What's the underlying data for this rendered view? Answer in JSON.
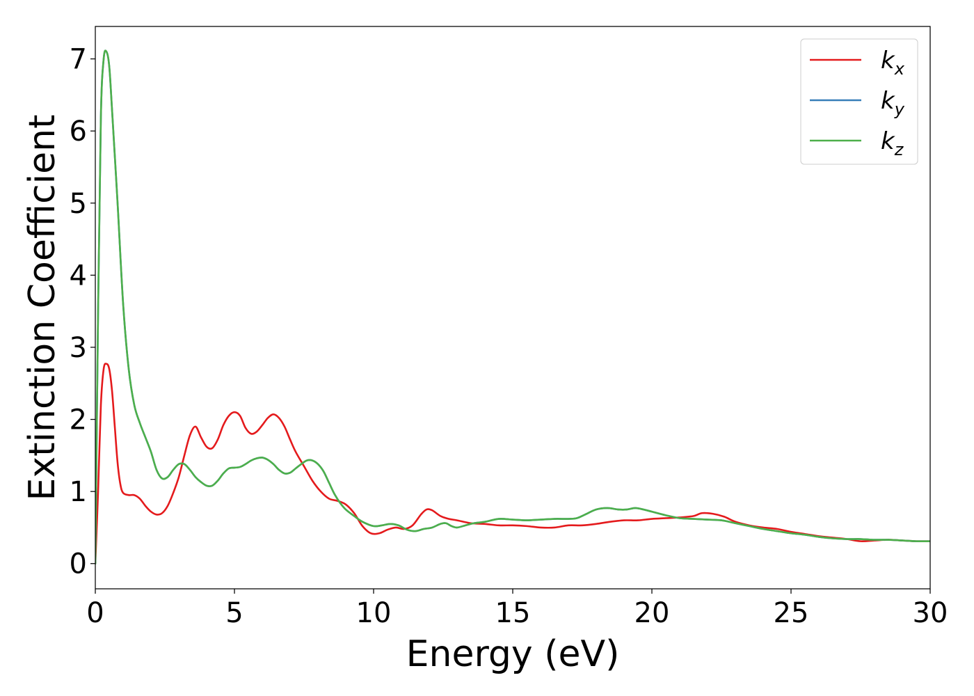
{
  "chart_data": {
    "type": "line",
    "xlabel": "Energy (eV)",
    "ylabel": "Extinction Coefficient",
    "xlim": [
      0,
      30
    ],
    "ylim": [
      -0.35,
      7.45
    ],
    "xticks": [
      0,
      5,
      10,
      15,
      20,
      25,
      30
    ],
    "yticks": [
      0,
      1,
      2,
      3,
      4,
      5,
      6,
      7
    ],
    "grid": false,
    "legend_position": "top-right",
    "series": [
      {
        "name": "k",
        "subscript": "x",
        "color": "#e41a1c",
        "points": [
          [
            0,
            0
          ],
          [
            0.1,
            1.0
          ],
          [
            0.2,
            2.2
          ],
          [
            0.3,
            2.7
          ],
          [
            0.4,
            2.77
          ],
          [
            0.5,
            2.7
          ],
          [
            0.6,
            2.4
          ],
          [
            0.7,
            1.9
          ],
          [
            0.8,
            1.4
          ],
          [
            0.9,
            1.1
          ],
          [
            1.0,
            0.98
          ],
          [
            1.2,
            0.95
          ],
          [
            1.4,
            0.95
          ],
          [
            1.6,
            0.9
          ],
          [
            1.8,
            0.8
          ],
          [
            2.0,
            0.72
          ],
          [
            2.2,
            0.68
          ],
          [
            2.4,
            0.7
          ],
          [
            2.6,
            0.8
          ],
          [
            2.8,
            0.98
          ],
          [
            3.0,
            1.2
          ],
          [
            3.2,
            1.5
          ],
          [
            3.4,
            1.78
          ],
          [
            3.6,
            1.9
          ],
          [
            3.8,
            1.75
          ],
          [
            4.0,
            1.62
          ],
          [
            4.2,
            1.6
          ],
          [
            4.4,
            1.72
          ],
          [
            4.6,
            1.92
          ],
          [
            4.8,
            2.05
          ],
          [
            5.0,
            2.1
          ],
          [
            5.2,
            2.05
          ],
          [
            5.4,
            1.88
          ],
          [
            5.6,
            1.8
          ],
          [
            5.8,
            1.83
          ],
          [
            6.0,
            1.92
          ],
          [
            6.2,
            2.02
          ],
          [
            6.4,
            2.07
          ],
          [
            6.6,
            2.02
          ],
          [
            6.8,
            1.9
          ],
          [
            7.0,
            1.72
          ],
          [
            7.2,
            1.55
          ],
          [
            7.5,
            1.35
          ],
          [
            7.8,
            1.15
          ],
          [
            8.1,
            1.0
          ],
          [
            8.4,
            0.9
          ],
          [
            8.7,
            0.87
          ],
          [
            9.0,
            0.82
          ],
          [
            9.3,
            0.7
          ],
          [
            9.6,
            0.52
          ],
          [
            9.9,
            0.42
          ],
          [
            10.2,
            0.42
          ],
          [
            10.5,
            0.47
          ],
          [
            10.8,
            0.5
          ],
          [
            11.1,
            0.48
          ],
          [
            11.4,
            0.53
          ],
          [
            11.7,
            0.68
          ],
          [
            11.9,
            0.75
          ],
          [
            12.1,
            0.74
          ],
          [
            12.4,
            0.66
          ],
          [
            12.7,
            0.62
          ],
          [
            13.0,
            0.6
          ],
          [
            13.5,
            0.56
          ],
          [
            14.0,
            0.55
          ],
          [
            14.5,
            0.53
          ],
          [
            15.0,
            0.53
          ],
          [
            15.5,
            0.52
          ],
          [
            16.0,
            0.5
          ],
          [
            16.5,
            0.5
          ],
          [
            17.0,
            0.53
          ],
          [
            17.5,
            0.53
          ],
          [
            18.0,
            0.55
          ],
          [
            18.5,
            0.58
          ],
          [
            19.0,
            0.6
          ],
          [
            19.5,
            0.6
          ],
          [
            20.0,
            0.62
          ],
          [
            20.5,
            0.63
          ],
          [
            21.0,
            0.64
          ],
          [
            21.5,
            0.66
          ],
          [
            21.8,
            0.7
          ],
          [
            22.2,
            0.69
          ],
          [
            22.6,
            0.65
          ],
          [
            23.0,
            0.58
          ],
          [
            23.5,
            0.53
          ],
          [
            24.0,
            0.5
          ],
          [
            24.5,
            0.48
          ],
          [
            25.0,
            0.44
          ],
          [
            25.5,
            0.41
          ],
          [
            26.0,
            0.38
          ],
          [
            26.5,
            0.36
          ],
          [
            27.0,
            0.34
          ],
          [
            27.5,
            0.31
          ],
          [
            28.0,
            0.32
          ],
          [
            28.5,
            0.33
          ],
          [
            29.0,
            0.32
          ],
          [
            29.5,
            0.31
          ],
          [
            30.0,
            0.31
          ]
        ]
      },
      {
        "name": "k",
        "subscript": "y",
        "color": "#377eb8",
        "points": [
          [
            0,
            0
          ],
          [
            0.1,
            3.5
          ],
          [
            0.2,
            6.2
          ],
          [
            0.3,
            7.0
          ],
          [
            0.4,
            7.1
          ],
          [
            0.5,
            6.9
          ],
          [
            0.6,
            6.3
          ],
          [
            0.8,
            5.0
          ],
          [
            1.0,
            3.6
          ],
          [
            1.2,
            2.7
          ],
          [
            1.4,
            2.2
          ],
          [
            1.6,
            1.95
          ],
          [
            1.8,
            1.75
          ],
          [
            2.0,
            1.55
          ],
          [
            2.2,
            1.3
          ],
          [
            2.4,
            1.18
          ],
          [
            2.6,
            1.2
          ],
          [
            2.8,
            1.3
          ],
          [
            3.0,
            1.38
          ],
          [
            3.2,
            1.38
          ],
          [
            3.4,
            1.3
          ],
          [
            3.6,
            1.2
          ],
          [
            3.8,
            1.13
          ],
          [
            4.0,
            1.08
          ],
          [
            4.2,
            1.08
          ],
          [
            4.4,
            1.15
          ],
          [
            4.6,
            1.25
          ],
          [
            4.8,
            1.32
          ],
          [
            5.0,
            1.33
          ],
          [
            5.2,
            1.34
          ],
          [
            5.4,
            1.38
          ],
          [
            5.6,
            1.43
          ],
          [
            5.8,
            1.46
          ],
          [
            6.0,
            1.47
          ],
          [
            6.2,
            1.44
          ],
          [
            6.4,
            1.38
          ],
          [
            6.6,
            1.3
          ],
          [
            6.8,
            1.25
          ],
          [
            7.0,
            1.26
          ],
          [
            7.2,
            1.32
          ],
          [
            7.4,
            1.38
          ],
          [
            7.6,
            1.43
          ],
          [
            7.8,
            1.43
          ],
          [
            8.0,
            1.38
          ],
          [
            8.2,
            1.28
          ],
          [
            8.4,
            1.12
          ],
          [
            8.6,
            0.96
          ],
          [
            8.8,
            0.84
          ],
          [
            9.0,
            0.75
          ],
          [
            9.3,
            0.66
          ],
          [
            9.6,
            0.58
          ],
          [
            10.0,
            0.52
          ],
          [
            10.3,
            0.53
          ],
          [
            10.6,
            0.55
          ],
          [
            10.9,
            0.53
          ],
          [
            11.2,
            0.47
          ],
          [
            11.5,
            0.45
          ],
          [
            11.8,
            0.48
          ],
          [
            12.1,
            0.5
          ],
          [
            12.4,
            0.55
          ],
          [
            12.6,
            0.56
          ],
          [
            12.8,
            0.52
          ],
          [
            13.0,
            0.5
          ],
          [
            13.3,
            0.53
          ],
          [
            13.6,
            0.56
          ],
          [
            14.0,
            0.58
          ],
          [
            14.5,
            0.62
          ],
          [
            15.0,
            0.61
          ],
          [
            15.5,
            0.6
          ],
          [
            16.0,
            0.61
          ],
          [
            16.5,
            0.62
          ],
          [
            17.0,
            0.62
          ],
          [
            17.3,
            0.63
          ],
          [
            17.6,
            0.68
          ],
          [
            18.0,
            0.75
          ],
          [
            18.4,
            0.77
          ],
          [
            18.8,
            0.75
          ],
          [
            19.1,
            0.75
          ],
          [
            19.4,
            0.77
          ],
          [
            19.7,
            0.75
          ],
          [
            20.0,
            0.72
          ],
          [
            20.5,
            0.67
          ],
          [
            21.0,
            0.63
          ],
          [
            21.5,
            0.62
          ],
          [
            22.0,
            0.61
          ],
          [
            22.5,
            0.6
          ],
          [
            23.0,
            0.56
          ],
          [
            23.5,
            0.52
          ],
          [
            24.0,
            0.48
          ],
          [
            24.5,
            0.45
          ],
          [
            25.0,
            0.42
          ],
          [
            25.5,
            0.4
          ],
          [
            26.0,
            0.37
          ],
          [
            26.5,
            0.35
          ],
          [
            27.0,
            0.34
          ],
          [
            27.5,
            0.34
          ],
          [
            28.0,
            0.33
          ],
          [
            28.5,
            0.33
          ],
          [
            29.0,
            0.32
          ],
          [
            29.5,
            0.31
          ],
          [
            30.0,
            0.31
          ]
        ]
      },
      {
        "name": "k",
        "subscript": "z",
        "color": "#4daf4a",
        "points": [
          [
            0,
            0
          ],
          [
            0.1,
            3.5
          ],
          [
            0.2,
            6.2
          ],
          [
            0.3,
            7.0
          ],
          [
            0.4,
            7.1
          ],
          [
            0.5,
            6.9
          ],
          [
            0.6,
            6.3
          ],
          [
            0.8,
            5.0
          ],
          [
            1.0,
            3.6
          ],
          [
            1.2,
            2.7
          ],
          [
            1.4,
            2.2
          ],
          [
            1.6,
            1.95
          ],
          [
            1.8,
            1.75
          ],
          [
            2.0,
            1.55
          ],
          [
            2.2,
            1.3
          ],
          [
            2.4,
            1.18
          ],
          [
            2.6,
            1.2
          ],
          [
            2.8,
            1.3
          ],
          [
            3.0,
            1.38
          ],
          [
            3.2,
            1.38
          ],
          [
            3.4,
            1.3
          ],
          [
            3.6,
            1.2
          ],
          [
            3.8,
            1.13
          ],
          [
            4.0,
            1.08
          ],
          [
            4.2,
            1.08
          ],
          [
            4.4,
            1.15
          ],
          [
            4.6,
            1.25
          ],
          [
            4.8,
            1.32
          ],
          [
            5.0,
            1.33
          ],
          [
            5.2,
            1.34
          ],
          [
            5.4,
            1.38
          ],
          [
            5.6,
            1.43
          ],
          [
            5.8,
            1.46
          ],
          [
            6.0,
            1.47
          ],
          [
            6.2,
            1.44
          ],
          [
            6.4,
            1.38
          ],
          [
            6.6,
            1.3
          ],
          [
            6.8,
            1.25
          ],
          [
            7.0,
            1.26
          ],
          [
            7.2,
            1.32
          ],
          [
            7.4,
            1.38
          ],
          [
            7.6,
            1.43
          ],
          [
            7.8,
            1.43
          ],
          [
            8.0,
            1.38
          ],
          [
            8.2,
            1.28
          ],
          [
            8.4,
            1.12
          ],
          [
            8.6,
            0.96
          ],
          [
            8.8,
            0.84
          ],
          [
            9.0,
            0.75
          ],
          [
            9.3,
            0.66
          ],
          [
            9.6,
            0.58
          ],
          [
            10.0,
            0.52
          ],
          [
            10.3,
            0.53
          ],
          [
            10.6,
            0.55
          ],
          [
            10.9,
            0.53
          ],
          [
            11.2,
            0.47
          ],
          [
            11.5,
            0.45
          ],
          [
            11.8,
            0.48
          ],
          [
            12.1,
            0.5
          ],
          [
            12.4,
            0.55
          ],
          [
            12.6,
            0.56
          ],
          [
            12.8,
            0.52
          ],
          [
            13.0,
            0.5
          ],
          [
            13.3,
            0.53
          ],
          [
            13.6,
            0.56
          ],
          [
            14.0,
            0.58
          ],
          [
            14.5,
            0.62
          ],
          [
            15.0,
            0.61
          ],
          [
            15.5,
            0.6
          ],
          [
            16.0,
            0.61
          ],
          [
            16.5,
            0.62
          ],
          [
            17.0,
            0.62
          ],
          [
            17.3,
            0.63
          ],
          [
            17.6,
            0.68
          ],
          [
            18.0,
            0.75
          ],
          [
            18.4,
            0.77
          ],
          [
            18.8,
            0.75
          ],
          [
            19.1,
            0.75
          ],
          [
            19.4,
            0.77
          ],
          [
            19.7,
            0.75
          ],
          [
            20.0,
            0.72
          ],
          [
            20.5,
            0.67
          ],
          [
            21.0,
            0.63
          ],
          [
            21.5,
            0.62
          ],
          [
            22.0,
            0.61
          ],
          [
            22.5,
            0.6
          ],
          [
            23.0,
            0.56
          ],
          [
            23.5,
            0.52
          ],
          [
            24.0,
            0.48
          ],
          [
            24.5,
            0.45
          ],
          [
            25.0,
            0.42
          ],
          [
            25.5,
            0.4
          ],
          [
            26.0,
            0.37
          ],
          [
            26.5,
            0.35
          ],
          [
            27.0,
            0.34
          ],
          [
            27.5,
            0.34
          ],
          [
            28.0,
            0.33
          ],
          [
            28.5,
            0.33
          ],
          [
            29.0,
            0.32
          ],
          [
            29.5,
            0.31
          ],
          [
            30.0,
            0.31
          ]
        ]
      }
    ]
  }
}
